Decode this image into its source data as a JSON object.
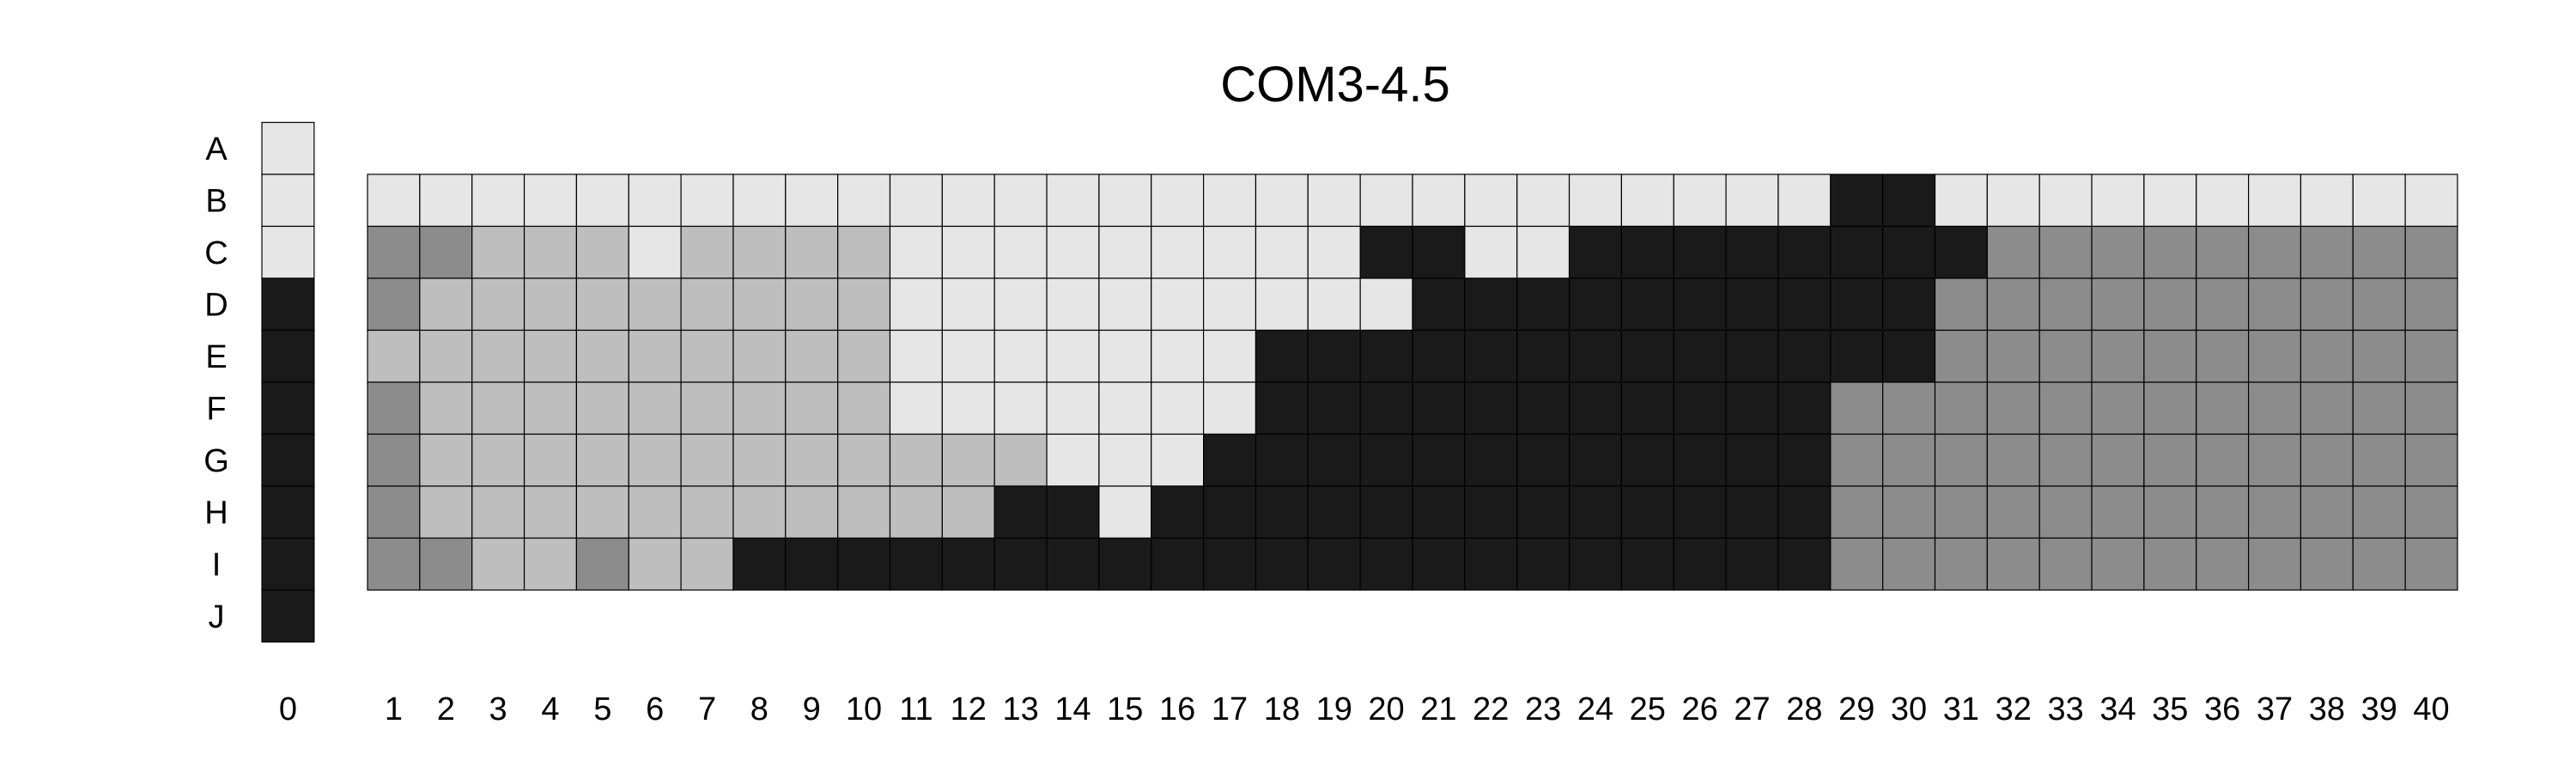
{
  "chart_data": {
    "type": "heatmap",
    "title": "COM3-4.5",
    "xlabel": "",
    "ylabel": "",
    "rows": [
      "A",
      "B",
      "C",
      "D",
      "E",
      "F",
      "G",
      "H",
      "I",
      "J"
    ],
    "key_column": {
      "label": "0",
      "values": [
        "L",
        "L",
        "L",
        "K",
        "K",
        "K",
        "K",
        "K",
        "K",
        "K"
      ]
    },
    "columns": [
      "1",
      "2",
      "3",
      "4",
      "5",
      "6",
      "7",
      "8",
      "9",
      "10",
      "11",
      "12",
      "13",
      "14",
      "15",
      "16",
      "17",
      "18",
      "19",
      "20",
      "21",
      "22",
      "23",
      "24",
      "25",
      "26",
      "27",
      "28",
      "29",
      "30",
      "31",
      "32",
      "33",
      "34",
      "35",
      "36",
      "37",
      "38",
      "39",
      "40"
    ],
    "grid_rows": [
      "B",
      "C",
      "D",
      "E",
      "F",
      "G",
      "H",
      "I"
    ],
    "grid": [
      "LLLLLLLLLLLLLLLLLLLLLLLLLLLLKKLLLLLLLLLL",
      "DDMMMLMMMMLLLLLLLLLKKLLKKKKKKKKDDDDDDDDD",
      "DMMMMMMMMMLLLLLLLLLLKKKKKKKKKKDDDDDDDDDD",
      "MMMMMMMMMMLLLLLLLKKKKKKKKKKKKKDDDDDDDDDD",
      "DMMMMMMMMMLLLLLLLKKKKKKKKKKKDDDDDDDDDDDD",
      "DMMMMMMMMMMMMLLLKKKKKKKKKKKKDDDDDDDDDDDD",
      "DMMMMMMMMMMMKKLKKKKKKKKKKKKKDDDDDDDDDDDD",
      "DDMMDMMKKKKKKKKKKKKKKKKKKKKKDDDDDDDDDDDD"
    ],
    "colors": {
      "L": "#e6e6e6",
      "M": "#bebebe",
      "D": "#8c8c8c",
      "K": "#1a1a1a"
    },
    "grid_lines": true,
    "legend": "none"
  }
}
